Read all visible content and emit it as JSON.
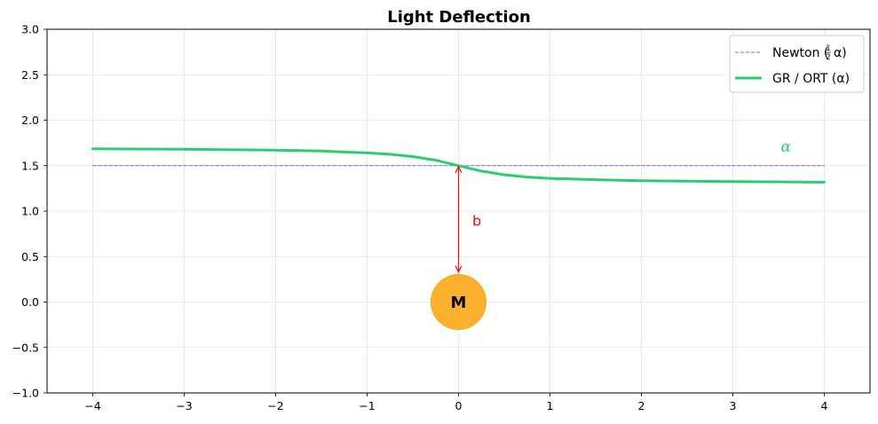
{
  "chart_data": {
    "type": "line",
    "title": "Light Deflection",
    "xlabel": "",
    "ylabel": "",
    "xlim": [
      -4.5,
      4.5
    ],
    "ylim": [
      -1.0,
      3.0
    ],
    "xticks": [
      -4,
      -3,
      -2,
      -1,
      0,
      1,
      2,
      3,
      4
    ],
    "xtick_labels": [
      "−4",
      "−3",
      "−2",
      "−1",
      "0",
      "1",
      "2",
      "3",
      "4"
    ],
    "yticks": [
      -1.0,
      -0.5,
      0.0,
      0.5,
      1.0,
      1.5,
      2.0,
      2.5,
      3.0
    ],
    "ytick_labels": [
      "−1.0",
      "−0.5",
      "0.0",
      "0.5",
      "1.0",
      "1.5",
      "2.0",
      "2.5",
      "3.0"
    ],
    "grid": true,
    "legend_position": "top-right",
    "series": [
      {
        "name": "Newton (½α)",
        "legend_label": "Newton (",
        "legend_suffix": "α)",
        "legend_fraction": [
          "1",
          "2"
        ],
        "style": "dashed",
        "color": "#6b6bf0",
        "x": [
          -4,
          4
        ],
        "y": [
          1.5,
          1.5
        ]
      },
      {
        "name": "GR / ORT (α)",
        "legend_label": "GR / ORT (α)",
        "style": "solid",
        "color": "#2ecc71",
        "x": [
          -4.0,
          -3.0,
          -2.0,
          -1.5,
          -1.0,
          -0.75,
          -0.5,
          -0.25,
          0.0,
          0.25,
          0.5,
          0.75,
          1.0,
          1.5,
          2.0,
          3.0,
          4.0
        ],
        "y": [
          1.685,
          1.68,
          1.67,
          1.66,
          1.64,
          1.625,
          1.6,
          1.56,
          1.5,
          1.44,
          1.4,
          1.375,
          1.36,
          1.345,
          1.335,
          1.325,
          1.318
        ]
      }
    ],
    "annotations": {
      "alpha_label": "α",
      "alpha_label_x": 3.58,
      "alpha_label_y": 1.71,
      "alpha_color": "#2ecc71",
      "impact_arrow_x": 0,
      "impact_arrow_from_y": 1.5,
      "impact_arrow_to_y": 0.32,
      "impact_label": "b",
      "impact_label_x": 0.2,
      "impact_label_y": 0.9,
      "impact_color": "#e01010",
      "mass_label": "M",
      "mass_x": 0,
      "mass_y": 0,
      "mass_color": "#fbb12d"
    }
  }
}
